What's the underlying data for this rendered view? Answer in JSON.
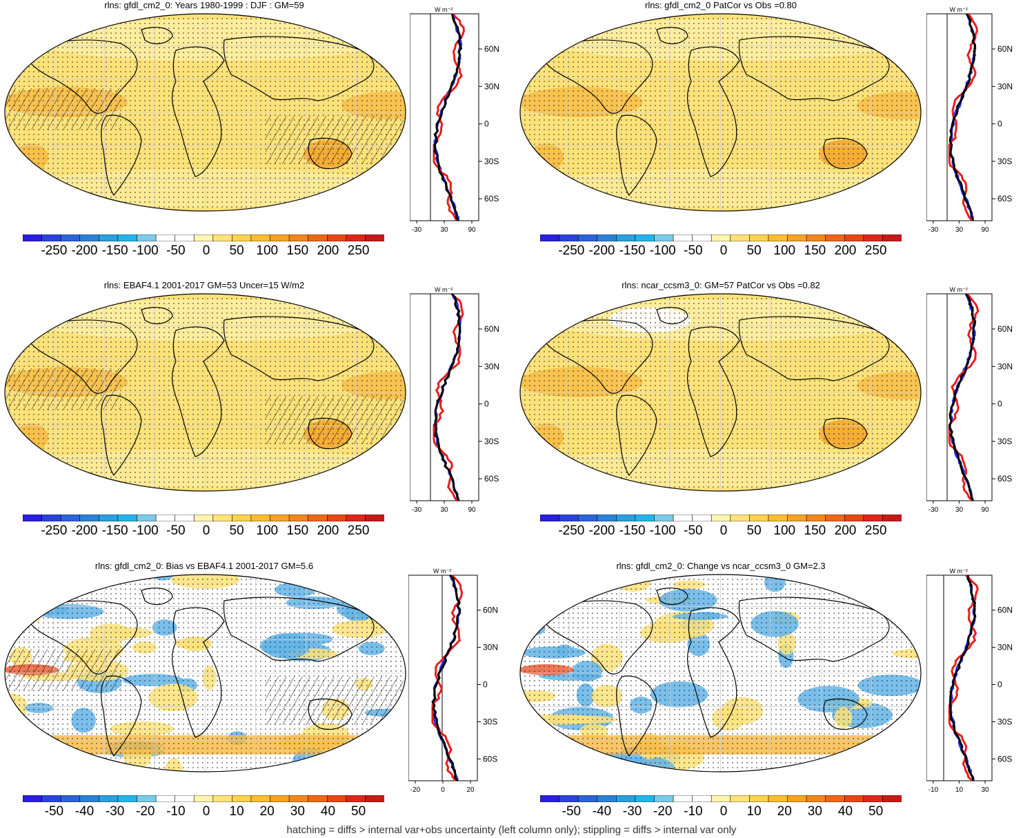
{
  "palettes": {
    "cool_to_warm": [
      "#2a1ee0",
      "#2b42dc",
      "#2c63d8",
      "#2a82d6",
      "#2aa0dc",
      "#21b6ea",
      "#7ccbe6",
      "#ffffff",
      "#ffffff",
      "#fff4b0",
      "#ffe37a",
      "#fdd24e",
      "#f9bd2f",
      "#f6a225",
      "#f2861c",
      "#ee6716",
      "#e94614",
      "#e0261a",
      "#c61a18"
    ],
    "map_fill_main": "#fde27a",
    "map_fill_warm": "#f8c04a",
    "map_fill_orange": "#f5a32a",
    "bias_blue": "#63b4e8",
    "bias_red": "#e8562a"
  },
  "profile_colors": {
    "model": "#1f2ee6",
    "obs": "#e81c1c",
    "ref": "#000000"
  },
  "panels": [
    {
      "id": "top-left",
      "title": "rlns: gfdl_cm2_0: Years 1980-1999 : DJF : GM=59",
      "colorbar_labels": [
        "-250",
        "-200",
        "-150",
        "-100",
        "-50",
        "0",
        "50",
        "100",
        "150",
        "200",
        "250"
      ],
      "profile": {
        "unit": "W m⁻²",
        "x_ticks": [
          "-30",
          "30",
          "90"
        ],
        "y_ticks": [
          "60N",
          "30N",
          "0",
          "30S",
          "60S"
        ]
      },
      "hatched": true
    },
    {
      "id": "top-right",
      "title": "rlns: gfdl_cm2_0 PatCor vs Obs =0.80",
      "colorbar_labels": [
        "-250",
        "-200",
        "-150",
        "-100",
        "-50",
        "0",
        "50",
        "100",
        "150",
        "200",
        "250"
      ],
      "profile": {
        "unit": "W m⁻²",
        "x_ticks": [
          "-30",
          "30",
          "90"
        ],
        "y_ticks": [
          "60N",
          "30N",
          "0",
          "30S",
          "60S"
        ]
      },
      "hatched": false
    },
    {
      "id": "mid-left",
      "title": "rlns: EBAF4.1 2001-2017 GM=53 Uncer=15 W/m2",
      "colorbar_labels": [
        "-250",
        "-200",
        "-150",
        "-100",
        "-50",
        "0",
        "50",
        "100",
        "150",
        "200",
        "250"
      ],
      "profile": {
        "unit": "W m⁻²",
        "x_ticks": [
          "-30",
          "30",
          "90"
        ],
        "y_ticks": [
          "60N",
          "30N",
          "0",
          "30S",
          "60S"
        ]
      },
      "hatched": true
    },
    {
      "id": "mid-right",
      "title": "rlns: ncar_ccsm3_0: GM=57 PatCor vs Obs =0.82",
      "colorbar_labels": [
        "-250",
        "-200",
        "-150",
        "-100",
        "-50",
        "0",
        "50",
        "100",
        "150",
        "200",
        "250"
      ],
      "profile": {
        "unit": "W m⁻²",
        "x_ticks": [
          "-30",
          "30",
          "90"
        ],
        "y_ticks": [
          "60N",
          "30N",
          "0",
          "30S",
          "60S"
        ]
      },
      "hatched": false
    },
    {
      "id": "bot-left",
      "title": "rlns: gfdl_cm2_0: Bias vs EBAF4.1 2001-2017 GM=5.6",
      "colorbar_labels": [
        "-50",
        "-40",
        "-30",
        "-20",
        "-10",
        "0",
        "10",
        "20",
        "30",
        "40",
        "50"
      ],
      "profile": {
        "unit": "W m⁻²",
        "x_ticks": [
          "-20",
          "0",
          "20"
        ],
        "y_ticks": [
          "60N",
          "30N",
          "0",
          "30S",
          "60S"
        ]
      },
      "hatched": true,
      "diff": true
    },
    {
      "id": "bot-right",
      "title": "rlns: gfdl_cm2_0: Change vs ncar_ccsm3_0 GM=2.3",
      "colorbar_labels": [
        "-50",
        "-40",
        "-30",
        "-20",
        "-10",
        "0",
        "10",
        "20",
        "30",
        "40",
        "50"
      ],
      "profile": {
        "unit": "W m⁻²",
        "x_ticks": [
          "-10",
          "10",
          "30"
        ],
        "y_ticks": [
          "60N",
          "30N",
          "0",
          "30S",
          "60S"
        ]
      },
      "hatched": false,
      "diff": true
    }
  ],
  "footer": "hatching = diffs > internal var+obs uncertainty (left column only); stippling = diffs > internal var only"
}
